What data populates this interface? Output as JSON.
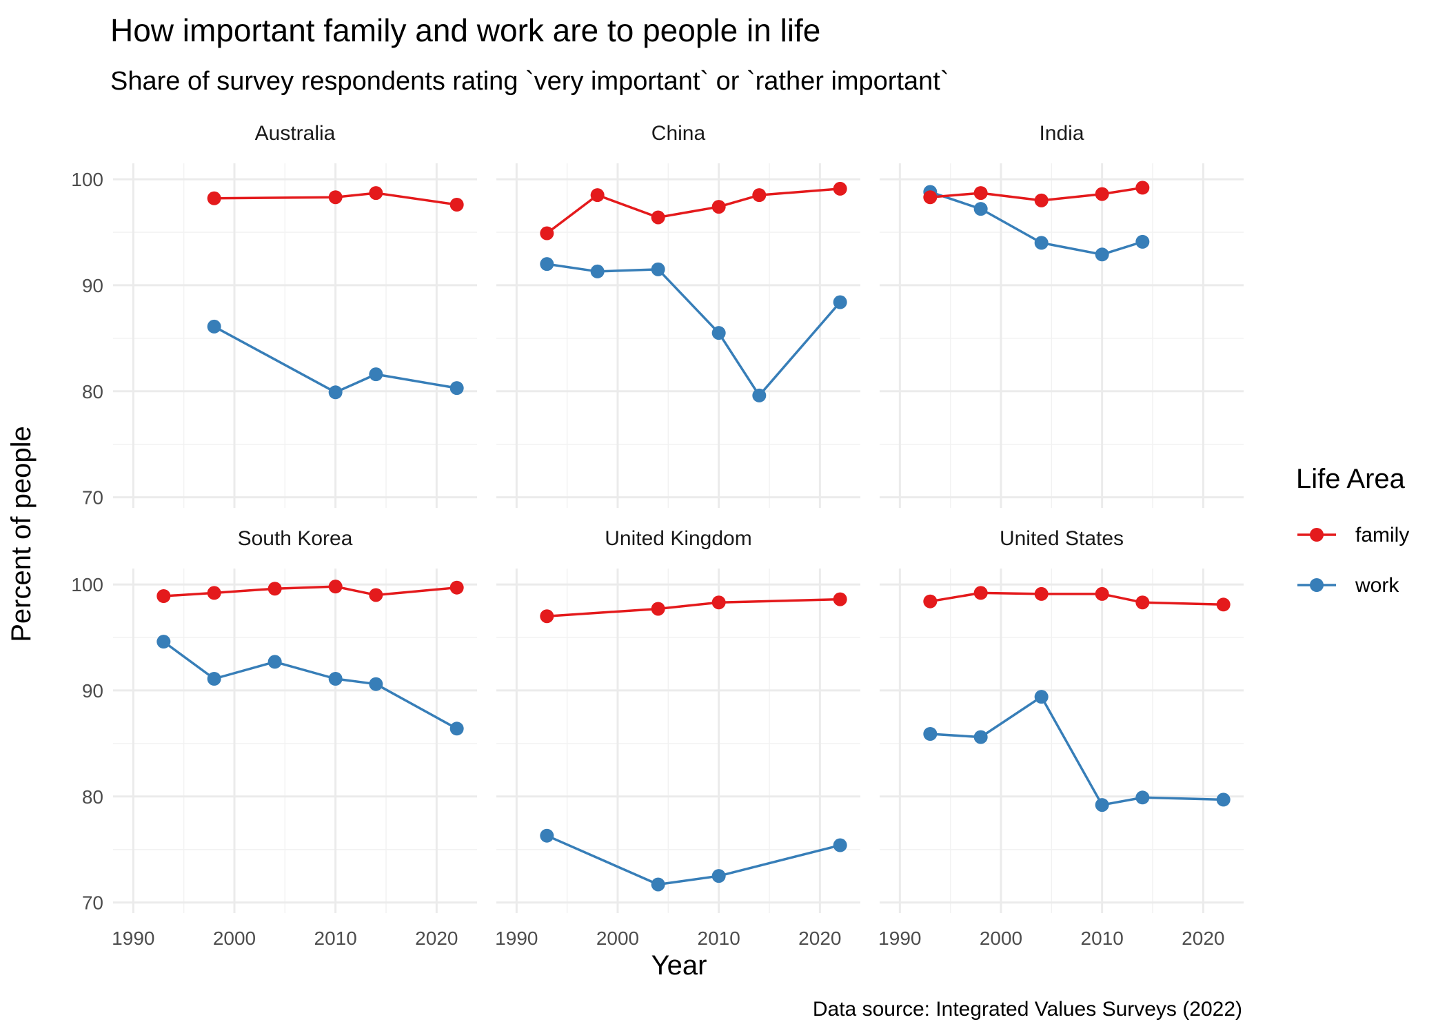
{
  "chart_data": {
    "type": "line",
    "title": "How important family and work are to people in life",
    "subtitle": "Share of survey respondents rating `very important` or `rather important`",
    "xlabel": "Year",
    "ylabel": "Percent of people",
    "caption": "Data source: Integrated Values Surveys (2022)",
    "xlim": [
      1988,
      2024
    ],
    "ylim": [
      69,
      101.5
    ],
    "x_ticks": [
      1990,
      2000,
      2010,
      2020
    ],
    "y_ticks": [
      70,
      80,
      90,
      100
    ],
    "grid": true,
    "legend": {
      "title": "Life Area",
      "position": "right",
      "items": [
        {
          "name": "family",
          "color": "#e41a1c"
        },
        {
          "name": "work",
          "color": "#377eb8"
        }
      ]
    },
    "panels": [
      {
        "name": "Australia",
        "series": [
          {
            "name": "family",
            "x": [
              1998,
              2010,
              2014,
              2022
            ],
            "y": [
              98.2,
              98.3,
              98.7,
              97.6
            ]
          },
          {
            "name": "work",
            "x": [
              1998,
              2010,
              2014,
              2022
            ],
            "y": [
              86.1,
              79.9,
              81.6,
              80.3
            ]
          }
        ]
      },
      {
        "name": "China",
        "series": [
          {
            "name": "family",
            "x": [
              1993,
              1998,
              2004,
              2010,
              2014,
              2022
            ],
            "y": [
              94.9,
              98.5,
              96.4,
              97.4,
              98.5,
              99.1
            ]
          },
          {
            "name": "work",
            "x": [
              1993,
              1998,
              2004,
              2010,
              2014,
              2022
            ],
            "y": [
              92.0,
              91.3,
              91.5,
              85.5,
              79.6,
              88.4
            ]
          }
        ]
      },
      {
        "name": "India",
        "series": [
          {
            "name": "family",
            "x": [
              1993,
              1998,
              2004,
              2010,
              2014
            ],
            "y": [
              98.3,
              98.7,
              98.0,
              98.6,
              99.2
            ]
          },
          {
            "name": "work",
            "x": [
              1993,
              1998,
              2004,
              2010,
              2014
            ],
            "y": [
              98.8,
              97.2,
              94.0,
              92.9,
              94.1
            ]
          }
        ]
      },
      {
        "name": "South Korea",
        "series": [
          {
            "name": "family",
            "x": [
              1993,
              1998,
              2004,
              2010,
              2014,
              2022
            ],
            "y": [
              98.9,
              99.2,
              99.6,
              99.8,
              99.0,
              99.7
            ]
          },
          {
            "name": "work",
            "x": [
              1993,
              1998,
              2004,
              2010,
              2014,
              2022
            ],
            "y": [
              94.6,
              91.1,
              92.7,
              91.1,
              90.6,
              86.4
            ]
          }
        ]
      },
      {
        "name": "United Kingdom",
        "series": [
          {
            "name": "family",
            "x": [
              1993,
              2004,
              2010,
              2022
            ],
            "y": [
              97.0,
              97.7,
              98.3,
              98.6
            ]
          },
          {
            "name": "work",
            "x": [
              1993,
              2004,
              2010,
              2022
            ],
            "y": [
              76.3,
              71.7,
              72.5,
              75.4
            ]
          }
        ]
      },
      {
        "name": "United States",
        "series": [
          {
            "name": "family",
            "x": [
              1993,
              1998,
              2004,
              2010,
              2014,
              2022
            ],
            "y": [
              98.4,
              99.2,
              99.1,
              99.1,
              98.3,
              98.1
            ]
          },
          {
            "name": "work",
            "x": [
              1993,
              1998,
              2004,
              2010,
              2014,
              2022
            ],
            "y": [
              85.9,
              85.6,
              89.4,
              79.2,
              79.9,
              79.7
            ]
          }
        ]
      }
    ]
  }
}
